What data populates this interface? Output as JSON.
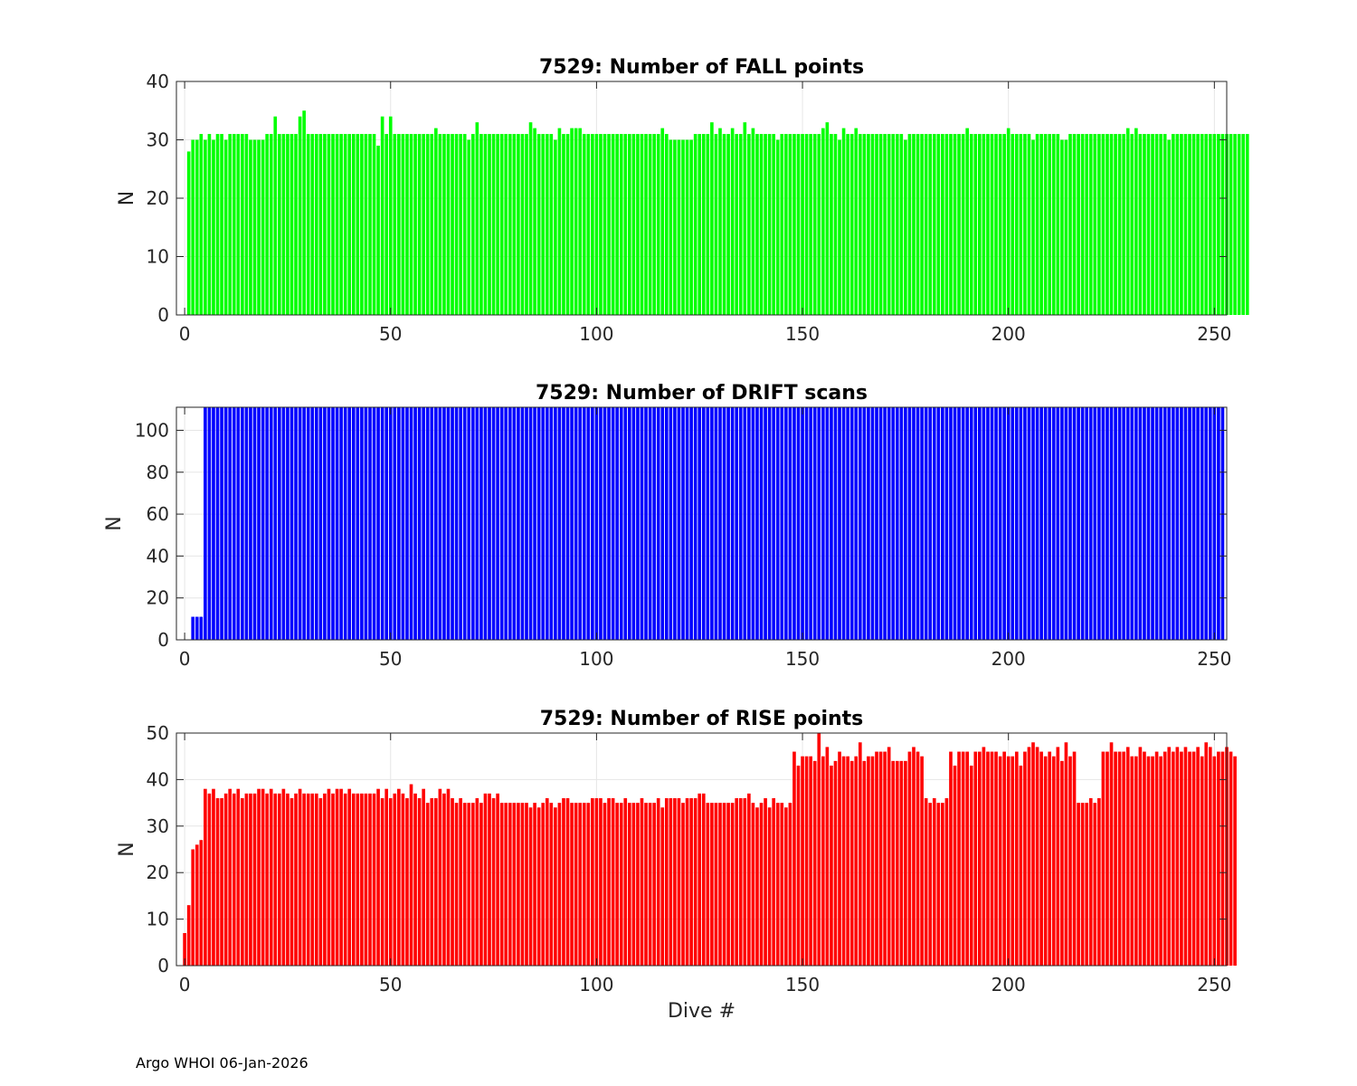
{
  "footer": "Argo WHOI 06-Jan-2026",
  "chart_data": [
    {
      "type": "bar",
      "title": "7529: Number of FALL points",
      "xlabel": "",
      "ylabel": "N",
      "color": "#00ff00",
      "xlim": [
        -2,
        253
      ],
      "ylim": [
        0,
        40
      ],
      "xticks": [
        0,
        50,
        100,
        150,
        200,
        250
      ],
      "yticks": [
        0,
        10,
        20,
        30,
        40
      ],
      "grid": true,
      "x_start": 1,
      "values": [
        28,
        30,
        30,
        31,
        30,
        31,
        30,
        31,
        31,
        30,
        31,
        31,
        31,
        31,
        31,
        30,
        30,
        30,
        30,
        31,
        31,
        34,
        31,
        31,
        31,
        31,
        31,
        34,
        35,
        31,
        31,
        31,
        31,
        31,
        31,
        31,
        31,
        31,
        31,
        31,
        31,
        31,
        31,
        31,
        31,
        31,
        29,
        34,
        31,
        34,
        31,
        31,
        31,
        31,
        31,
        31,
        31,
        31,
        31,
        31,
        32,
        31,
        31,
        31,
        31,
        31,
        31,
        31,
        30,
        31,
        33,
        31,
        31,
        31,
        31,
        31,
        31,
        31,
        31,
        31,
        31,
        31,
        31,
        33,
        32,
        31,
        31,
        31,
        31,
        30,
        32,
        31,
        31,
        32,
        32,
        32,
        31,
        31,
        31,
        31,
        31,
        31,
        31,
        31,
        31,
        31,
        31,
        31,
        31,
        31,
        31,
        31,
        31,
        31,
        31,
        32,
        31,
        30,
        30,
        30,
        30,
        30,
        30,
        31,
        31,
        31,
        31,
        33,
        31,
        32,
        31,
        31,
        32,
        31,
        31,
        33,
        31,
        32,
        31,
        31,
        31,
        31,
        31,
        30,
        31,
        31,
        31,
        31,
        31,
        31,
        31,
        31,
        31,
        31,
        32,
        33,
        31,
        31,
        30,
        32,
        31,
        31,
        32,
        31,
        31,
        31,
        31,
        31,
        31,
        31,
        31,
        31,
        31,
        31,
        30,
        31,
        31,
        31,
        31,
        31,
        31,
        31,
        31,
        31,
        31,
        31,
        31,
        31,
        31,
        32,
        31,
        31,
        31,
        31,
        31,
        31,
        31,
        31,
        31,
        32,
        31,
        31,
        31,
        31,
        31,
        30,
        31,
        31,
        31,
        31,
        31,
        31,
        30,
        30,
        31,
        31,
        31,
        31,
        31,
        31,
        31,
        31,
        31,
        31,
        31,
        31,
        31,
        31,
        32,
        31,
        32,
        31,
        31,
        31,
        31,
        31,
        31,
        31,
        30,
        31,
        31,
        31,
        31,
        31,
        31,
        31,
        31,
        31,
        31,
        31,
        31,
        31,
        31,
        31,
        31,
        31,
        31,
        31
      ]
    },
    {
      "type": "bar",
      "title": "7529: Number of DRIFT scans",
      "xlabel": "",
      "ylabel": "N",
      "color": "#0000ff",
      "xlim": [
        -2,
        253
      ],
      "ylim": [
        0,
        111
      ],
      "xticks": [
        0,
        50,
        100,
        150,
        200,
        250
      ],
      "yticks": [
        0,
        20,
        40,
        60,
        80,
        100
      ],
      "grid": true,
      "x_start": 1,
      "values": [
        0,
        11,
        11,
        11,
        111,
        111,
        111,
        111,
        111,
        111,
        111,
        111,
        111,
        111,
        111,
        111,
        111,
        111,
        111,
        111,
        111,
        111,
        111,
        111,
        111,
        111,
        111,
        111,
        111,
        111,
        111,
        111,
        111,
        111,
        111,
        111,
        111,
        111,
        111,
        111,
        111,
        111,
        111,
        111,
        111,
        111,
        111,
        111,
        111,
        111,
        111,
        111,
        111,
        111,
        111,
        111,
        111,
        111,
        111,
        111,
        111,
        111,
        111,
        111,
        111,
        111,
        111,
        111,
        111,
        111,
        111,
        111,
        111,
        111,
        111,
        111,
        111,
        111,
        111,
        111,
        111,
        111,
        111,
        111,
        111,
        111,
        111,
        111,
        111,
        111,
        111,
        111,
        111,
        111,
        111,
        111,
        111,
        111,
        111,
        111,
        111,
        111,
        111,
        111,
        111,
        111,
        111,
        111,
        111,
        111,
        111,
        111,
        111,
        111,
        111,
        111,
        111,
        111,
        111,
        111,
        111,
        111,
        111,
        111,
        111,
        111,
        111,
        111,
        111,
        111,
        111,
        111,
        111,
        111,
        111,
        111,
        111,
        111,
        111,
        111,
        111,
        111,
        111,
        111,
        111,
        111,
        111,
        111,
        111,
        111,
        111,
        111,
        111,
        111,
        111,
        111,
        111,
        111,
        111,
        111,
        111,
        111,
        111,
        111,
        111,
        111,
        111,
        111,
        111,
        111,
        111,
        111,
        111,
        111,
        111,
        111,
        111,
        111,
        111,
        111,
        111,
        111,
        111,
        111,
        111,
        111,
        111,
        111,
        111,
        111,
        111,
        111,
        111,
        111,
        111,
        111,
        111,
        111,
        111,
        111,
        111,
        111,
        111,
        111,
        111,
        111,
        111,
        111,
        111,
        111,
        111,
        111,
        111,
        111,
        111,
        111,
        111,
        111,
        111,
        111,
        111,
        111,
        111,
        111,
        111,
        111,
        111,
        111,
        111,
        111,
        111,
        111,
        111,
        111,
        111,
        111,
        111,
        111,
        111,
        111,
        111,
        111,
        111,
        111,
        111,
        111,
        111,
        111,
        111,
        111,
        111,
        111
      ]
    },
    {
      "type": "bar",
      "title": "7529: Number of RISE points",
      "xlabel": "Dive #",
      "ylabel": "N",
      "color": "#ff0000",
      "xlim": [
        -2,
        253
      ],
      "ylim": [
        0,
        50
      ],
      "xticks": [
        0,
        50,
        100,
        150,
        200,
        250
      ],
      "yticks": [
        0,
        10,
        20,
        30,
        40,
        50
      ],
      "grid": true,
      "x_start": 0,
      "values": [
        7,
        13,
        25,
        26,
        27,
        38,
        37,
        38,
        36,
        36,
        37,
        38,
        37,
        38,
        36,
        37,
        37,
        37,
        38,
        38,
        37,
        38,
        37,
        37,
        38,
        37,
        36,
        37,
        38,
        37,
        37,
        37,
        37,
        36,
        37,
        38,
        37,
        38,
        38,
        37,
        38,
        37,
        37,
        37,
        37,
        37,
        37,
        38,
        36,
        38,
        36,
        37,
        38,
        37,
        36,
        39,
        37,
        36,
        38,
        35,
        36,
        36,
        38,
        37,
        38,
        36,
        35,
        36,
        35,
        35,
        35,
        36,
        35,
        37,
        37,
        36,
        37,
        35,
        35,
        35,
        35,
        35,
        35,
        35,
        34,
        35,
        34,
        35,
        36,
        35,
        34,
        35,
        36,
        36,
        35,
        35,
        35,
        35,
        35,
        36,
        36,
        36,
        35,
        36,
        36,
        35,
        35,
        36,
        35,
        35,
        35,
        36,
        35,
        35,
        35,
        36,
        34,
        36,
        36,
        36,
        36,
        35,
        36,
        36,
        36,
        37,
        37,
        35,
        35,
        35,
        35,
        35,
        35,
        35,
        36,
        36,
        36,
        37,
        35,
        34,
        35,
        36,
        34,
        36,
        35,
        35,
        34,
        35,
        46,
        43,
        45,
        45,
        45,
        44,
        50,
        45,
        47,
        43,
        44,
        46,
        45,
        45,
        44,
        45,
        48,
        44,
        45,
        45,
        46,
        46,
        46,
        47,
        44,
        44,
        44,
        44,
        46,
        47,
        46,
        45,
        36,
        35,
        36,
        35,
        35,
        36,
        46,
        43,
        46,
        46,
        46,
        43,
        46,
        46,
        47,
        46,
        46,
        46,
        45,
        46,
        45,
        45,
        46,
        43,
        46,
        47,
        48,
        47,
        46,
        45,
        46,
        45,
        47,
        44,
        48,
        45,
        46,
        35,
        35,
        35,
        36,
        35,
        36,
        46,
        46,
        48,
        46,
        46,
        46,
        47,
        45,
        45,
        47,
        46,
        45,
        45,
        46,
        45,
        46,
        47,
        46,
        47,
        46,
        47,
        46,
        46,
        47,
        45,
        48,
        47,
        45,
        46,
        46,
        47,
        46,
        45
      ]
    }
  ]
}
